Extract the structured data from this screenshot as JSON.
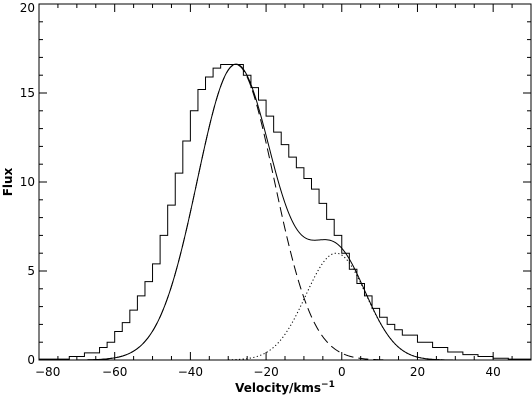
{
  "chart_data": {
    "type": "line",
    "xlabel": "Velocity/kms",
    "xlabel_sup": "−1",
    "ylabel": "Flux",
    "xlim": [
      -80,
      50
    ],
    "ylim": [
      0,
      20
    ],
    "x_ticks": [
      -80,
      -60,
      -40,
      -20,
      0,
      20,
      40
    ],
    "y_ticks": [
      0,
      5,
      10,
      15,
      20
    ],
    "x_tick_labels": [
      "−80",
      "−60",
      "−40",
      "−20",
      "0",
      "20",
      "40"
    ],
    "y_tick_labels": [
      "0",
      "5",
      "10",
      "15",
      "20"
    ],
    "grid": false,
    "legend": "none",
    "histogram": {
      "style": "steps",
      "bin_edges": [
        -80,
        -72,
        -68,
        -64,
        -62,
        -60,
        -58,
        -56,
        -54,
        -52,
        -50,
        -48,
        -46,
        -44,
        -42,
        -40,
        -38,
        -36,
        -34,
        -32,
        -30,
        -28,
        -26,
        -24,
        -22,
        -20,
        -18,
        -16,
        -14,
        -12,
        -10,
        -8,
        -6,
        -4,
        -2,
        0,
        2,
        4,
        6,
        8,
        10,
        12,
        14,
        16,
        20,
        24,
        28,
        32,
        36,
        40,
        44,
        50
      ],
      "values": [
        0.05,
        0.2,
        0.4,
        0.7,
        1.0,
        1.6,
        2.1,
        2.8,
        3.6,
        4.4,
        5.4,
        7.0,
        8.7,
        10.5,
        12.3,
        14.0,
        15.2,
        15.9,
        16.4,
        16.6,
        16.6,
        16.6,
        16.0,
        15.3,
        14.6,
        13.7,
        12.8,
        12.1,
        11.4,
        10.8,
        10.2,
        9.6,
        8.8,
        7.9,
        7.0,
        6.0,
        5.1,
        4.3,
        3.6,
        2.9,
        2.4,
        2.0,
        1.7,
        1.4,
        1.0,
        0.7,
        0.45,
        0.3,
        0.2,
        0.1,
        0.05
      ]
    },
    "series": [
      {
        "style": "dashed",
        "amplitude": 16.6,
        "center": -28,
        "sigma": 10.2
      },
      {
        "style": "dotted",
        "amplitude": 6.0,
        "center": -1.5,
        "sigma": 8.0
      },
      {
        "style": "solid",
        "components": [
          0,
          1
        ]
      }
    ]
  }
}
